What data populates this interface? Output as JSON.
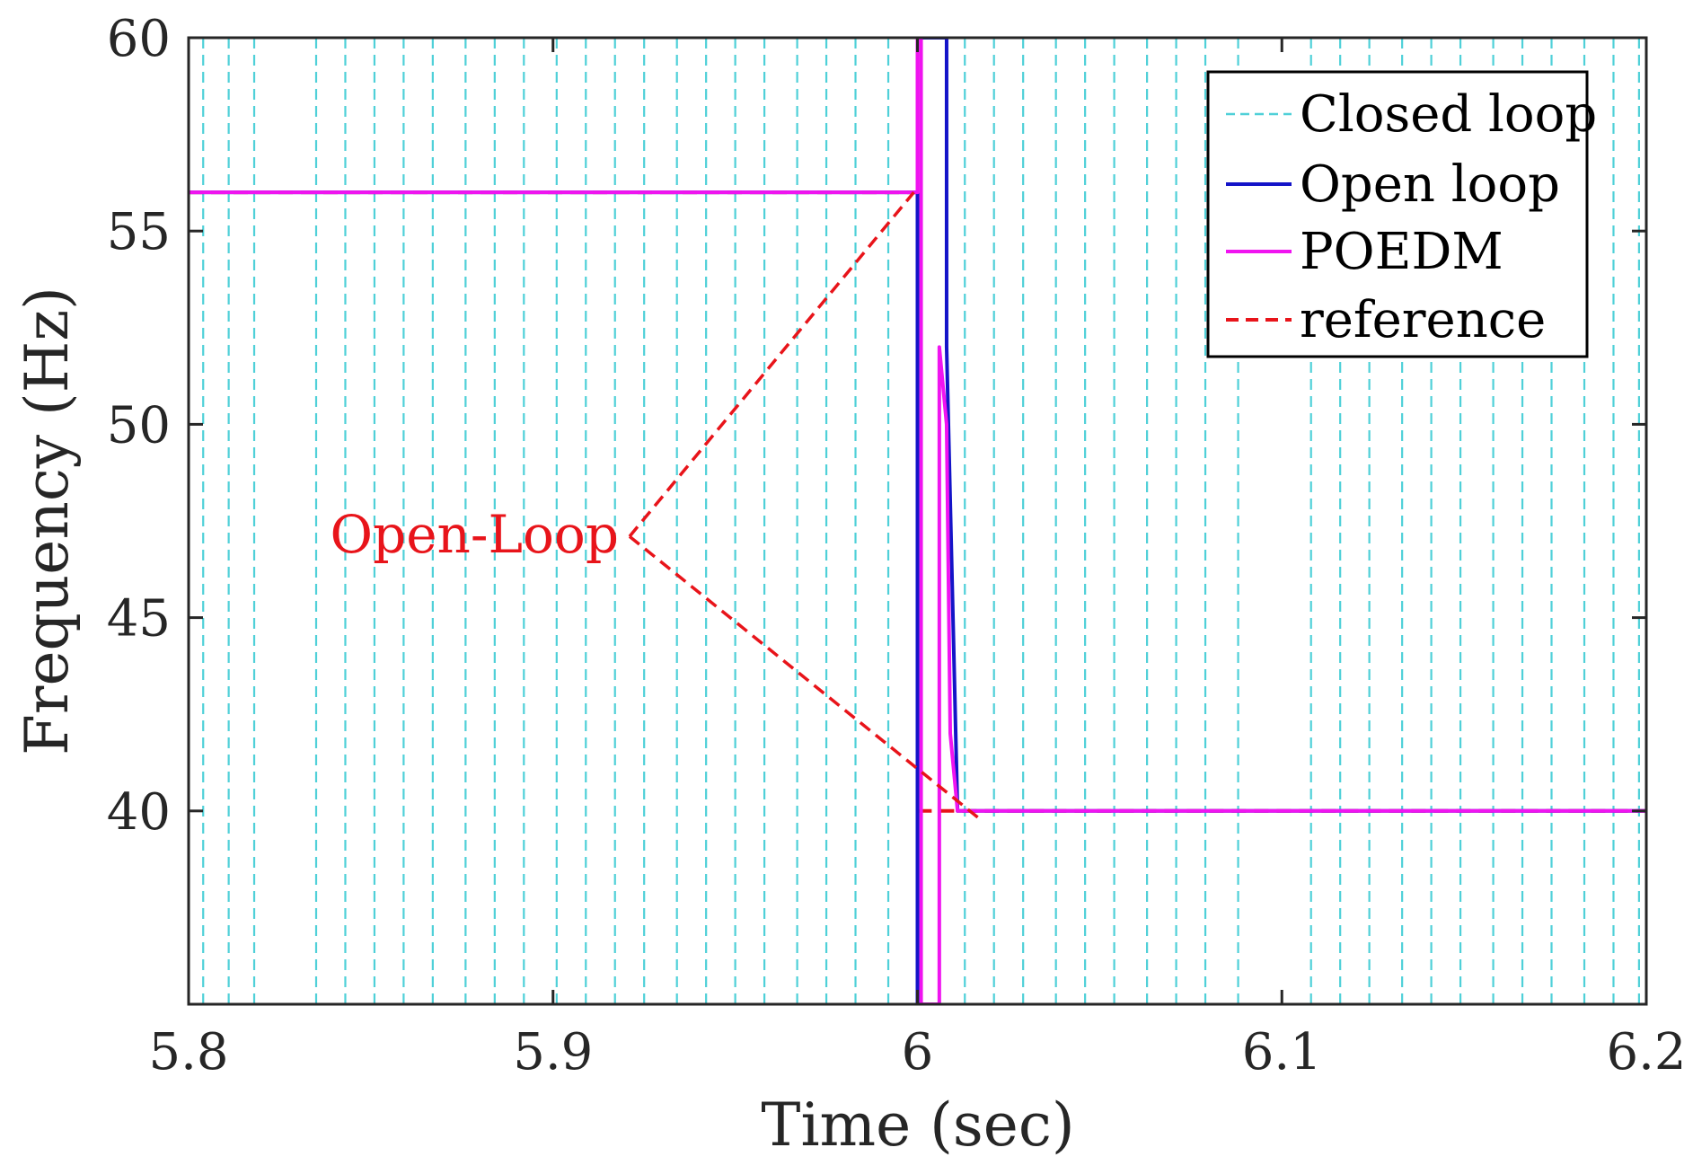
{
  "chart_data": {
    "type": "line",
    "xlabel": "Time (sec)",
    "ylabel": "Frequency (Hz)",
    "xlim": [
      5.8,
      6.2
    ],
    "ylim": [
      35,
      60
    ],
    "xticks": [
      5.8,
      5.9,
      6.0,
      6.1,
      6.2
    ],
    "xtick_labels": [
      "5.8",
      "5.9",
      "6",
      "6.1",
      "6.2"
    ],
    "yticks": [
      40,
      45,
      50,
      55,
      60
    ],
    "ytick_labels": [
      "40",
      "45",
      "50",
      "55",
      "60"
    ],
    "grid": false,
    "legend_position": "top-right",
    "series": [
      {
        "name": "Closed loop",
        "color": "#4fd0d8",
        "style": "dashed",
        "note_values": "rapid switching between the plot limits over the whole time range",
        "switch_times": [
          5.804,
          5.811,
          5.818,
          5.835,
          5.843,
          5.851,
          5.859,
          5.867,
          5.876,
          5.884,
          5.892,
          5.901,
          5.909,
          5.917,
          5.925,
          5.934,
          5.942,
          5.95,
          5.958,
          5.967,
          5.975,
          5.983,
          5.992,
          6.013,
          6.021,
          6.029,
          6.038,
          6.046,
          6.054,
          6.063,
          6.071,
          6.079,
          6.088,
          6.108,
          6.116,
          6.124,
          6.133,
          6.141,
          6.149,
          6.158,
          6.166,
          6.174,
          6.183,
          6.191,
          6.198
        ]
      },
      {
        "name": "Open loop",
        "color": "#1414c8",
        "style": "solid",
        "x": [
          5.8,
          6.0,
          6.0,
          6.0,
          6.008,
          6.008,
          6.011,
          6.2
        ],
        "y": [
          56,
          56,
          35,
          60,
          60,
          52,
          40,
          40
        ]
      },
      {
        "name": "POEDM",
        "color": "#f014f0",
        "style": "solid",
        "x": [
          5.8,
          6.0,
          6.0,
          6.001,
          6.001,
          6.006,
          6.006,
          6.008,
          6.009,
          6.011,
          6.2
        ],
        "y": [
          56,
          56,
          60,
          60,
          35,
          35,
          52,
          50,
          42,
          40,
          40
        ]
      },
      {
        "name": "reference",
        "color": "#e8141a",
        "style": "dashed",
        "x": [
          5.8,
          6.0,
          6.0,
          6.2
        ],
        "y": [
          56,
          56,
          40,
          40
        ]
      }
    ],
    "annotations": [
      {
        "text": "Open-Loop",
        "color": "#e8141a",
        "pointer_origin": [
          5.921,
          47.1
        ],
        "points_to": [
          [
            5.999,
            56.0
          ],
          [
            6.017,
            39.8
          ]
        ]
      }
    ]
  }
}
